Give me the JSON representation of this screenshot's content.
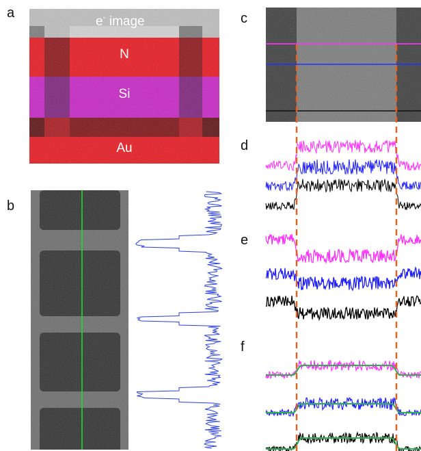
{
  "figure": {
    "panel_labels": [
      "a",
      "b",
      "c",
      "d",
      "e",
      "f"
    ],
    "panel_a": {
      "maps": [
        {
          "label": "e",
          "superscript": "-",
          "suffix": " image",
          "color": "#bfbfbf"
        },
        {
          "label": "N",
          "color": "#e8121a"
        },
        {
          "label": "Si",
          "color": "#c61fc3"
        },
        {
          "label": "Au",
          "color": "#e8121a"
        }
      ]
    },
    "panel_b": {
      "image": "grayscale-micrograph",
      "line_color": "#22dd22",
      "profile_color": "#2a3fdc"
    },
    "panel_c": {
      "image": "grayscale-micrograph",
      "line_colors": [
        "#ff33ff",
        "#1f33ff",
        "#111111"
      ]
    },
    "series_colors": {
      "magenta": "#ff33ff",
      "blue": "#1f1fff",
      "black": "#000000",
      "fit": "#2fae4f"
    },
    "guide_color": "#e8601c"
  }
}
